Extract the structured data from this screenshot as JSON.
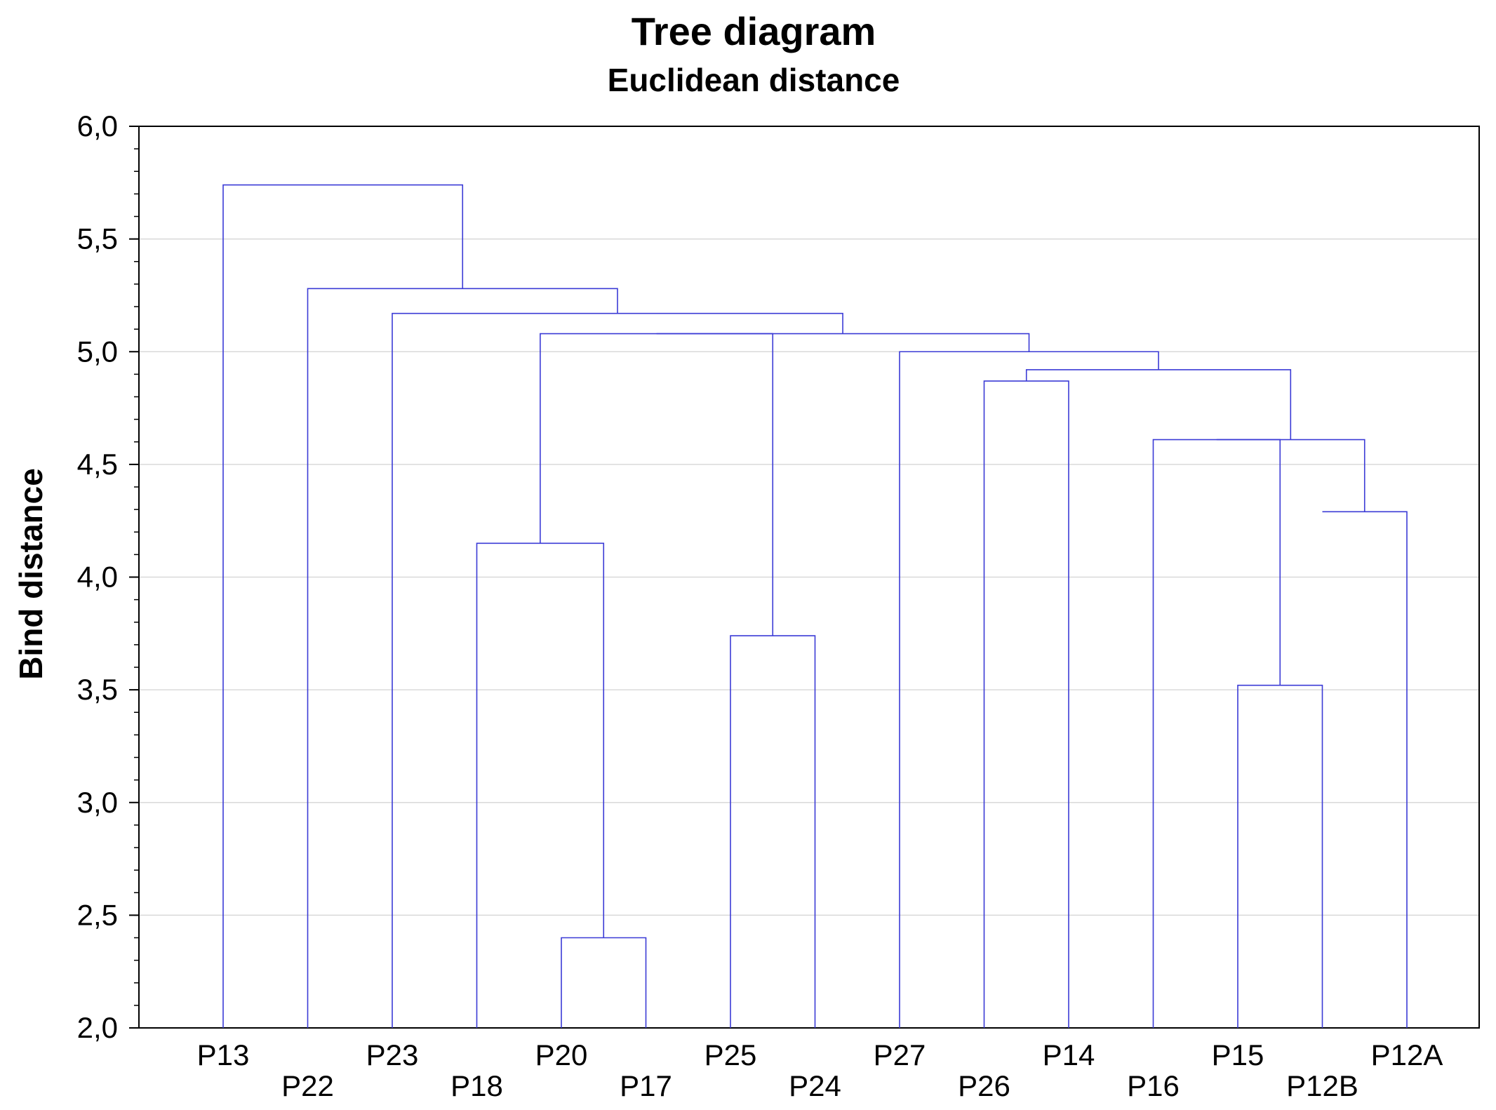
{
  "chart_data": {
    "type": "dendrogram",
    "title": "Tree diagram",
    "subtitle": "Euclidean distance",
    "ylabel": "Bind distance",
    "xlabel": "",
    "ylim": [
      2.0,
      6.0
    ],
    "yticks": [
      "2,0",
      "2,5",
      "3,0",
      "3,5",
      "4,0",
      "4,5",
      "5,0",
      "5,5",
      "6,0"
    ],
    "grid": true,
    "line_color": "#3b3bd6",
    "leaves": [
      "P13",
      "P22",
      "P23",
      "P18",
      "P20",
      "P17",
      "P25",
      "P24",
      "P27",
      "P26",
      "P14",
      "P16",
      "P15",
      "P12B",
      "P12A"
    ],
    "merges": [
      {
        "left": "P20",
        "right": "P17",
        "height": 2.4
      },
      {
        "left": "P15",
        "right": "P12B",
        "height": 3.52
      },
      {
        "left": "P25",
        "right": "P24",
        "height": 3.74
      },
      {
        "left": "P18",
        "right": "P20+P17",
        "height": 4.15
      },
      {
        "left": "P16",
        "right": "P15+P12B",
        "height": 4.61
      },
      {
        "left": "P12A",
        "right": "P14",
        "height": 4.29
      },
      {
        "left": "P26",
        "right": "P14",
        "height": 4.87
      },
      {
        "left": "P26+P14",
        "right": "P16+P15+P12B+P12A",
        "height": 4.92
      },
      {
        "left": "P27",
        "right": "P26 group",
        "height": 5.0
      },
      {
        "left": "P18 group",
        "right": "P25+P24",
        "height": 5.08
      },
      {
        "left": "P18-P24 group",
        "right": "P27 group",
        "height": 5.08
      },
      {
        "left": "P23",
        "right": "P18-P12A group",
        "height": 5.17
      },
      {
        "left": "P22",
        "right": "P23 group",
        "height": 5.28
      },
      {
        "left": "P13",
        "right": "P22 group",
        "height": 5.74
      }
    ]
  }
}
